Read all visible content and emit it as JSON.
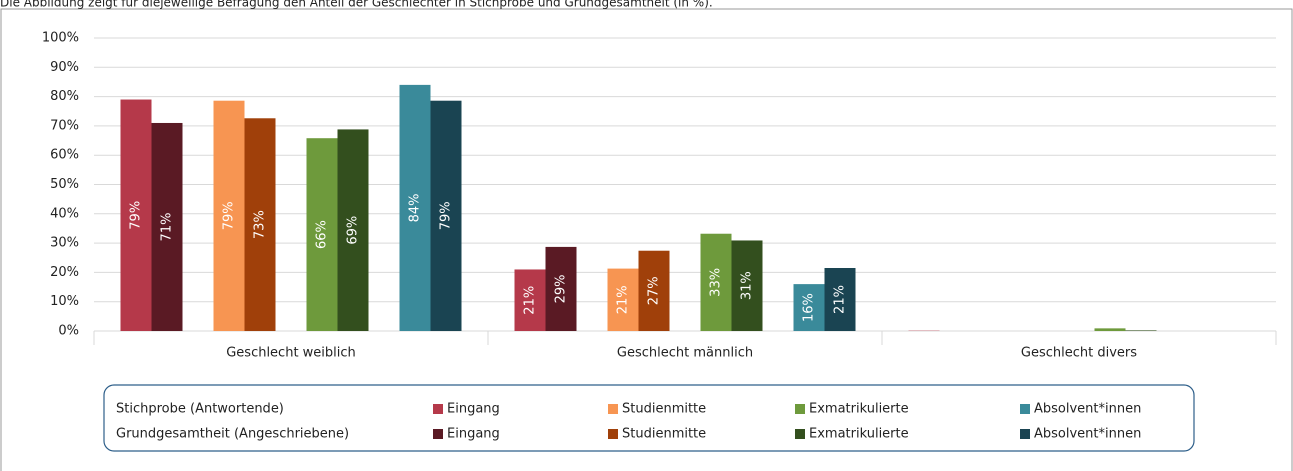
{
  "chart_data": {
    "type": "bar",
    "subtitle": "Die Abbildung zeigt für diejeweilige Befragung den Anteil der Geschlechter in Stichprobe und Grundgesamtheit (in %).",
    "categories": [
      "Geschlecht weiblich",
      "Geschlecht männlich",
      "Geschlecht divers"
    ],
    "legend_groups": [
      "Stichprobe (Antwortende)",
      "Grundgesamtheit (Angeschriebene)"
    ],
    "series": [
      {
        "name": "Eingang",
        "color": "#b5394a",
        "values": [
          79,
          21,
          0.1
        ],
        "value_labels": [
          "79%",
          "21%",
          null
        ]
      },
      {
        "name": "Eingang",
        "color": "#5a1a24",
        "values": [
          71,
          28.7,
          0
        ],
        "value_labels": [
          "71%",
          "29%",
          null
        ]
      },
      {
        "name": "Studienmitte",
        "color": "#f79552",
        "values": [
          78.6,
          21.3,
          0
        ],
        "value_labels": [
          "79%",
          "21%",
          null
        ]
      },
      {
        "name": "Studienmitte",
        "color": "#a0400a",
        "values": [
          72.6,
          27.4,
          0
        ],
        "value_labels": [
          "73%",
          "27%",
          null
        ]
      },
      {
        "name": "Exmatrikulierte",
        "color": "#6e9a3c",
        "values": [
          65.8,
          33.2,
          0.9
        ],
        "value_labels": [
          "66%",
          "33%",
          null
        ]
      },
      {
        "name": "Exmatrikulierte",
        "color": "#334f1e",
        "values": [
          68.8,
          30.9,
          0.2
        ],
        "value_labels": [
          "69%",
          "31%",
          null
        ]
      },
      {
        "name": "Absolvent*innen",
        "color": "#3a8a9a",
        "values": [
          84,
          16,
          0
        ],
        "value_labels": [
          "84%",
          "16%",
          null
        ]
      },
      {
        "name": "Absolvent*innen",
        "color": "#1a4452",
        "values": [
          78.6,
          21.5,
          0
        ],
        "value_labels": [
          "79%",
          "21%",
          null
        ]
      }
    ],
    "ylim": [
      0,
      100
    ],
    "yticks": [
      {
        "value": 0,
        "label": "0%"
      },
      {
        "value": 10,
        "label": "10%"
      },
      {
        "value": 20,
        "label": "20%"
      },
      {
        "value": 30,
        "label": "30%"
      },
      {
        "value": 40,
        "label": "40%"
      },
      {
        "value": 50,
        "label": "50%"
      },
      {
        "value": 60,
        "label": "60%"
      },
      {
        "value": 70,
        "label": "70%"
      },
      {
        "value": 80,
        "label": "80%"
      },
      {
        "value": 90,
        "label": "90%"
      },
      {
        "value": 100,
        "label": "100%"
      }
    ],
    "grid": true
  }
}
